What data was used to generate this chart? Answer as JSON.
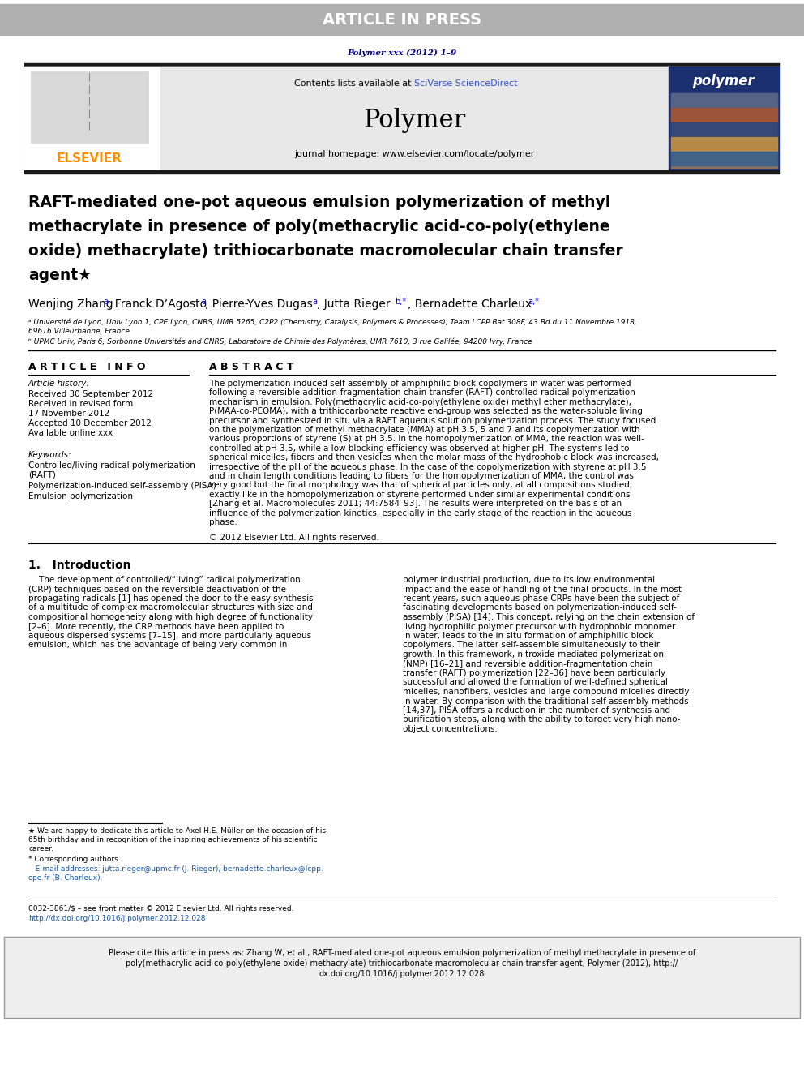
{
  "article_in_press_text": "ARTICLE IN PRESS",
  "article_in_press_bg": "#c0c0c0",
  "article_in_press_text_color": "#ffffff",
  "journal_ref": "Polymer xxx (2012) 1–9",
  "journal_ref_color": "#00008B",
  "journal_name": "Polymer",
  "journal_homepage": "journal homepage: www.elsevier.com/locate/polymer",
  "contents_text": "Contents lists available at ",
  "sciverse_text": "SciVerse ScienceDirect",
  "sciverse_color": "#4169E1",
  "elsevier_color": "#FF8C00",
  "title_line1": "RAFT-mediated one-pot aqueous emulsion polymerization of methyl",
  "title_line2": "methacrylate in presence of poly(methacrylic acid-co-poly(ethylene",
  "title_line3": "oxide) methacrylate) trithiocarbonate macromolecular chain transfer",
  "title_line4": "agent★",
  "affil_a": "ᵃ Université de Lyon, Univ Lyon 1, CPE Lyon, CNRS, UMR 5265, C2P2 (Chemistry, Catalysis, Polymers & Processes), Team LCPP Bat 308F, 43 Bd du 11 Novembre 1918,",
  "affil_a2": "69616 Villeurbanne, France",
  "affil_b": "ᵇ UPMC Univ, Paris 6, Sorbonne Universités and CNRS, Laboratoire de Chimie des Polymères, UMR 7610, 3 rue Galilée, 94200 Ivry, France",
  "article_info_title": "A R T I C L E   I N F O",
  "abstract_title": "A B S T R A C T",
  "article_history": "Article history:",
  "received": "Received 30 September 2012",
  "received_revised1": "Received in revised form",
  "received_revised2": "17 November 2012",
  "accepted": "Accepted 10 December 2012",
  "available": "Available online xxx",
  "keywords_title": "Keywords:",
  "keyword1a": "Controlled/living radical polymerization",
  "keyword1b": "(RAFT)",
  "keyword2": "Polymerization-induced self-assembly (PISA)",
  "keyword3": "Emulsion polymerization",
  "copyright": "© 2012 Elsevier Ltd. All rights reserved.",
  "intro_title": "1.   Introduction",
  "footer_issn": "0032-3861/$ – see front matter © 2012 Elsevier Ltd. All rights reserved.",
  "footer_doi": "http://dx.doi.org/10.1016/j.polymer.2012.12.028",
  "page_bg": "#ffffff",
  "header_bg": "#b0b0b0",
  "black_bar_color": "#1a1a1a"
}
